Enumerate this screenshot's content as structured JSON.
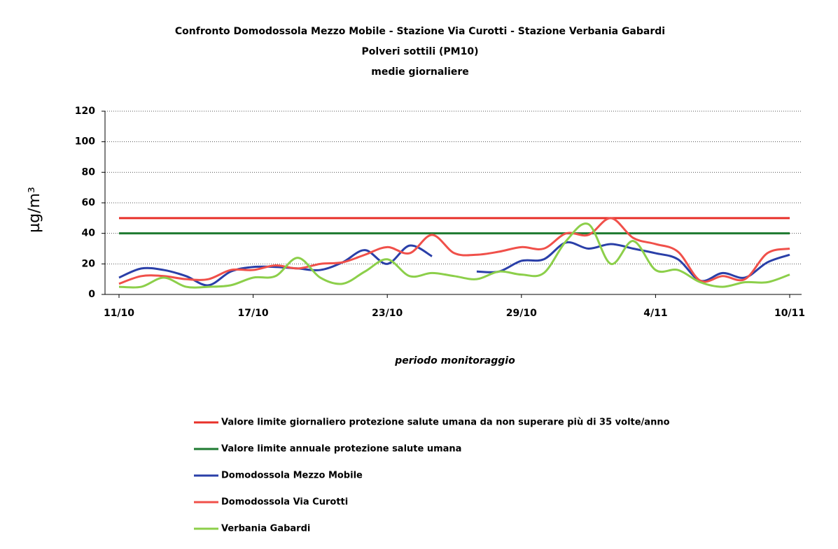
{
  "chart_data": {
    "type": "line",
    "title": "Confronto Domodossola Mezzo Mobile - Stazione Via Curotti - Stazione Verbania Gabardi",
    "subtitle": [
      "Polveri sottili (PM10)",
      "medie giornaliere"
    ],
    "ylabel": "µg/m³",
    "xlabel": "periodo monitoraggio",
    "categories": [
      "11/10",
      null,
      null,
      null,
      null,
      null,
      "17/10",
      null,
      null,
      null,
      null,
      null,
      "23/10",
      null,
      null,
      null,
      null,
      null,
      "29/10",
      null,
      null,
      null,
      null,
      null,
      "4/11",
      null,
      null,
      null,
      null,
      null,
      "10/11"
    ],
    "ylim": [
      0,
      120
    ],
    "yticks": [
      0,
      20,
      40,
      60,
      80,
      100,
      120
    ],
    "grid": true,
    "series": [
      {
        "name": "Valore limite giornaliero protezione salute umana da non superare più di 35 volte/anno",
        "color": "#e8312a",
        "values": [
          50,
          50,
          50,
          50,
          50,
          50,
          50,
          50,
          50,
          50,
          50,
          50,
          50,
          50,
          50,
          50,
          50,
          50,
          50,
          50,
          50,
          50,
          50,
          50,
          50,
          50,
          50,
          50,
          50,
          50,
          50
        ]
      },
      {
        "name": "Valore limite annuale protezione salute umana",
        "color": "#1e7a30",
        "values": [
          40,
          40,
          40,
          40,
          40,
          40,
          40,
          40,
          40,
          40,
          40,
          40,
          40,
          40,
          40,
          40,
          40,
          40,
          40,
          40,
          40,
          40,
          40,
          40,
          40,
          40,
          40,
          40,
          40,
          40,
          40
        ]
      },
      {
        "name": "Domodossola Mezzo Mobile",
        "color": "#2a3fa8",
        "values": [
          11,
          17,
          16,
          12,
          6,
          15,
          18,
          18,
          17,
          16,
          21,
          29,
          20,
          32,
          25,
          null,
          15,
          15,
          22,
          23,
          34,
          30,
          33,
          30,
          27,
          23,
          9,
          14,
          11,
          21,
          26
        ]
      },
      {
        "name": "Domodossola Via Curotti",
        "color": "#f0504a",
        "values": [
          7,
          12,
          12,
          10,
          10,
          16,
          16,
          19,
          17,
          20,
          21,
          26,
          31,
          27,
          39,
          27,
          26,
          28,
          31,
          30,
          40,
          39,
          50,
          37,
          33,
          28,
          9,
          12,
          10,
          27,
          30
        ]
      },
      {
        "name": "Verbania Gabardi",
        "color": "#8ccf4a",
        "values": [
          5,
          5,
          11,
          5,
          5,
          6,
          11,
          12,
          24,
          11,
          7,
          15,
          23,
          12,
          14,
          12,
          10,
          15,
          13,
          14,
          35,
          46,
          20,
          35,
          16,
          16,
          8,
          5,
          8,
          8,
          13
        ]
      }
    ]
  }
}
